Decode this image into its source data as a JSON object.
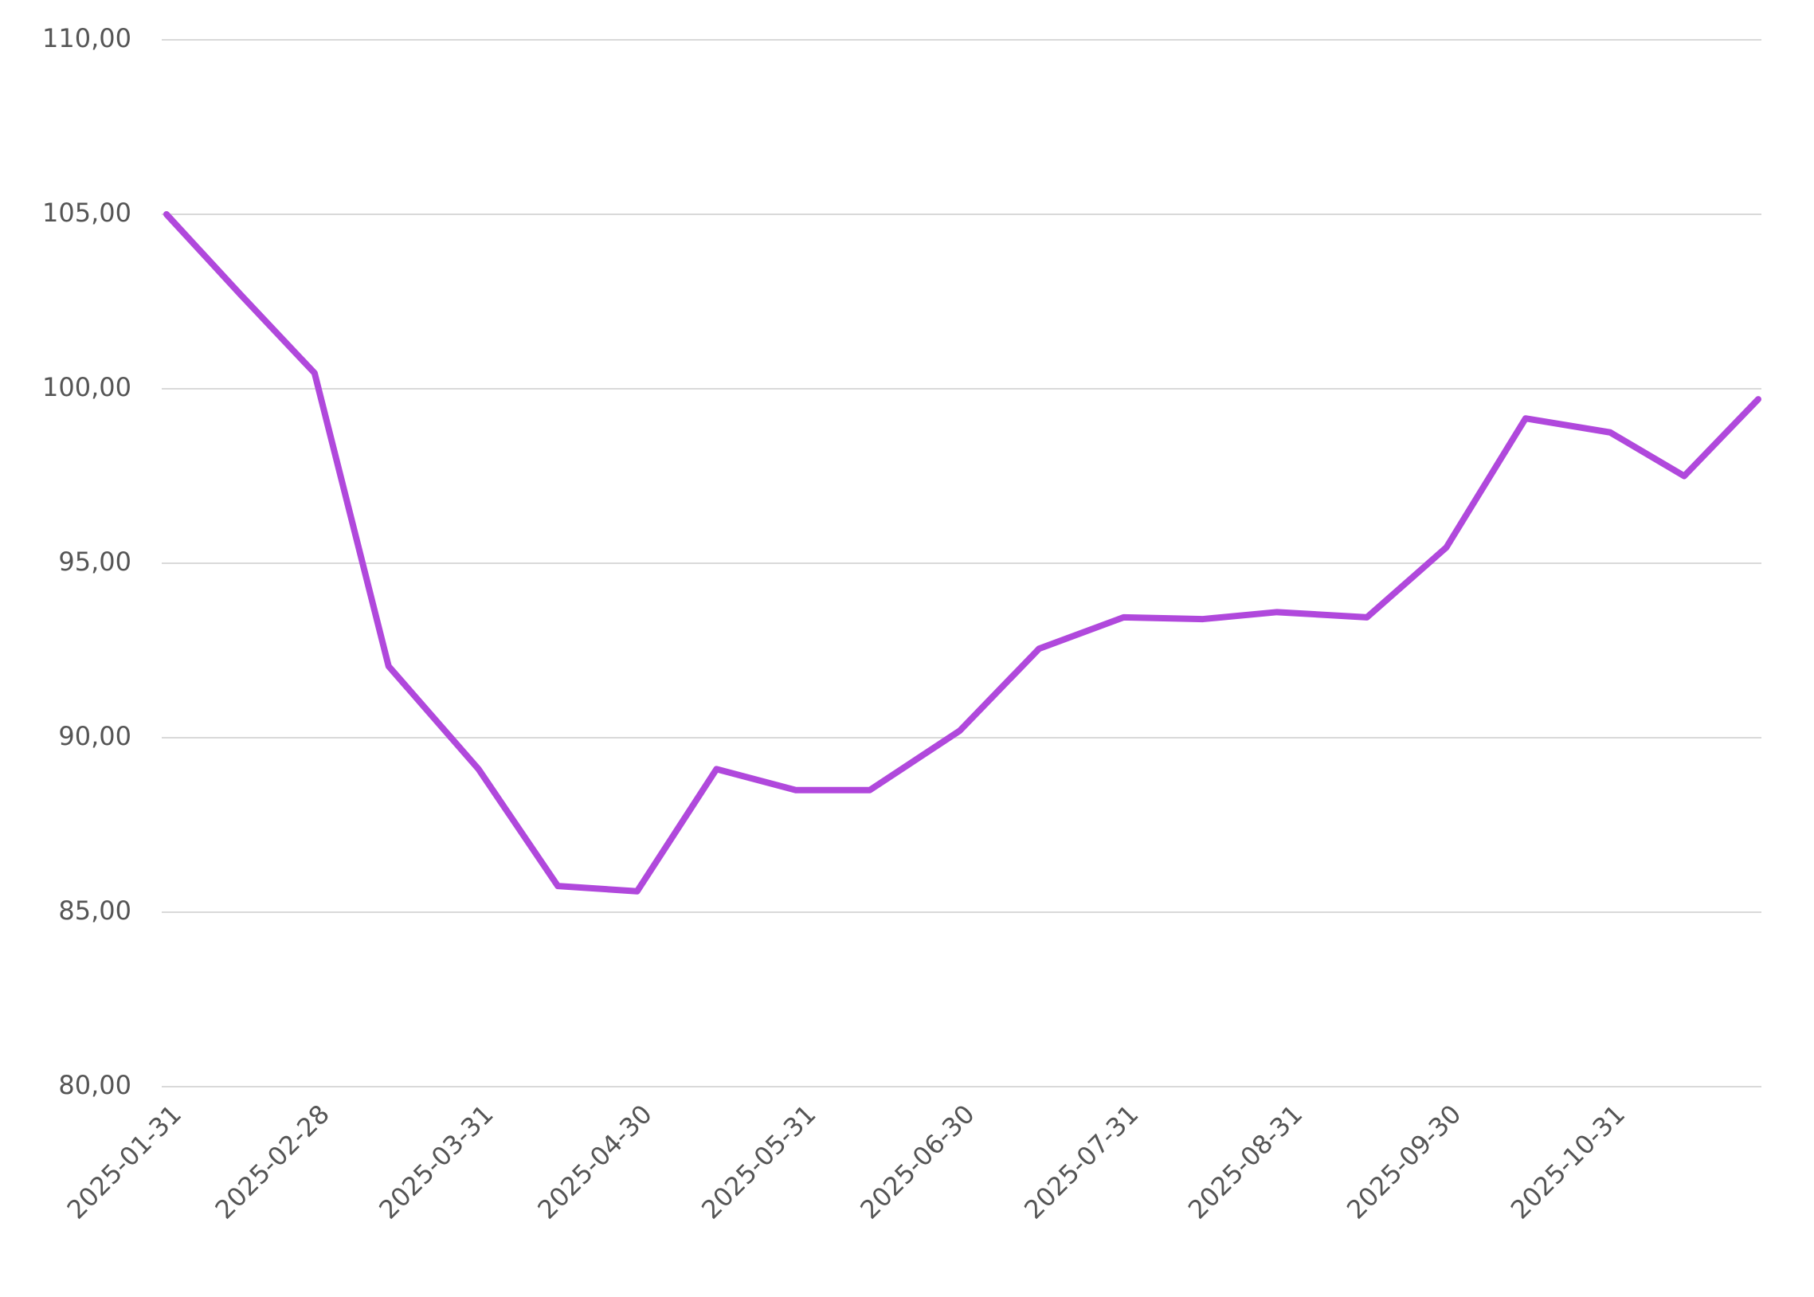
{
  "chart_data": {
    "type": "line",
    "x": [
      "2025-01-31",
      "2025-02-14",
      "2025-02-28",
      "2025-03-14",
      "2025-03-31",
      "2025-04-15",
      "2025-04-30",
      "2025-05-15",
      "2025-05-30",
      "2025-06-13",
      "2025-06-30",
      "2025-07-15",
      "2025-07-31",
      "2025-08-15",
      "2025-08-29",
      "2025-09-15",
      "2025-09-30",
      "2025-10-15",
      "2025-10-31",
      "2025-11-14",
      "2025-11-28"
    ],
    "series": [
      {
        "color": "#b048dc",
        "values": [
          105.0,
          102.7,
          100.45,
          92.05,
          89.1,
          85.75,
          85.6,
          89.1,
          88.5,
          88.5,
          90.2,
          92.55,
          93.45,
          93.4,
          93.6,
          93.45,
          95.45,
          99.15,
          98.75,
          97.5,
          99.7
        ]
      }
    ],
    "xlim": [
      "2025-01-31",
      "2025-11-28"
    ],
    "xticks": [
      "2025-01-31",
      "2025-02-28",
      "2025-03-31",
      "2025-04-30",
      "2025-05-31",
      "2025-06-30",
      "2025-07-31",
      "2025-08-31",
      "2025-09-30",
      "2025-10-31"
    ],
    "ylim": [
      80,
      110
    ],
    "yticks": [
      {
        "value": 80,
        "label": "80,00"
      },
      {
        "value": 85,
        "label": "85,00"
      },
      {
        "value": 90,
        "label": "90,00"
      },
      {
        "value": 95,
        "label": "95,00"
      },
      {
        "value": 100,
        "label": "100,00"
      },
      {
        "value": 105,
        "label": "105,00"
      },
      {
        "value": 110,
        "label": "110,00"
      }
    ],
    "grid": true
  }
}
